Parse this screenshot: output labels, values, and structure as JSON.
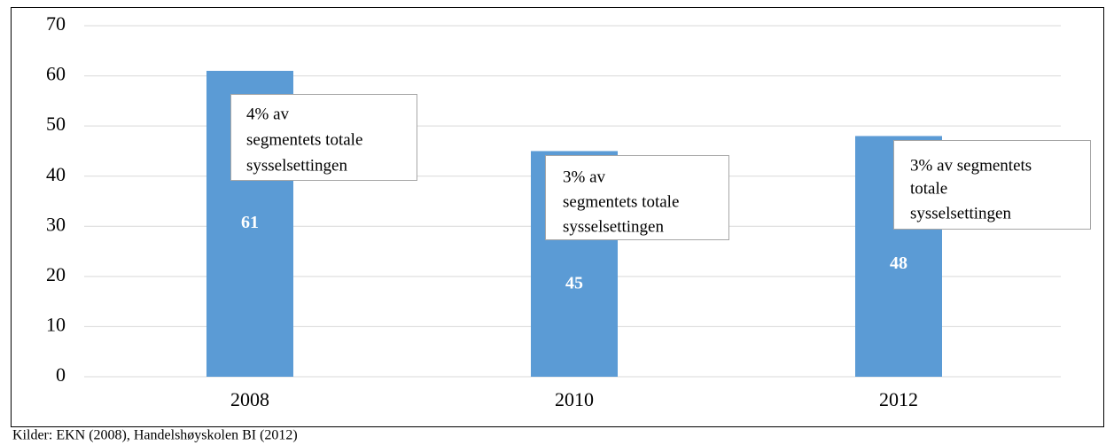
{
  "chart_data": {
    "type": "bar",
    "categories": [
      "2008",
      "2010",
      "2012"
    ],
    "values": [
      61,
      45,
      48
    ],
    "color": "#5b9bd5",
    "ylim": [
      0,
      70
    ],
    "yticks": [
      0,
      10,
      20,
      30,
      40,
      50,
      60,
      70
    ],
    "grid": true,
    "annotations": [
      {
        "lines": [
          "4% av",
          "segmentets totale",
          "sysselsettingen"
        ]
      },
      {
        "lines": [
          "3% av",
          "segmentets totale",
          "sysselsettingen"
        ]
      },
      {
        "lines": [
          "3% av segmentets",
          "totale",
          "sysselsettingen"
        ]
      }
    ],
    "source": "Kilder: EKN (2008), Handelshøyskolen BI (2012)"
  }
}
